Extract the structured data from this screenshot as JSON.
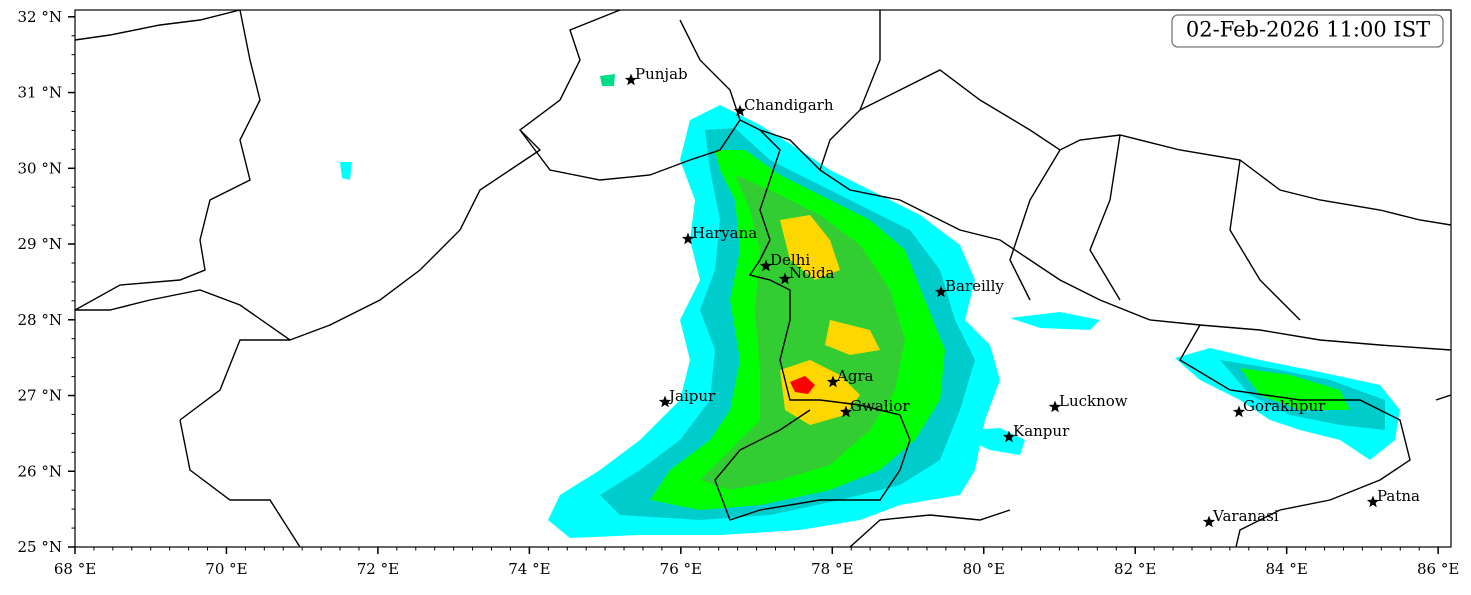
{
  "timestamp": "02-Feb-2026 11:00 IST",
  "axes": {
    "xlim": [
      68,
      86.17
    ],
    "ylim": [
      25,
      32.09
    ],
    "xticks": [
      {
        "value": 68,
        "label": "68 °E"
      },
      {
        "value": 70,
        "label": "70 °E"
      },
      {
        "value": 72,
        "label": "72 °E"
      },
      {
        "value": 74,
        "label": "74 °E"
      },
      {
        "value": 76,
        "label": "76 °E"
      },
      {
        "value": 78,
        "label": "78 °E"
      },
      {
        "value": 80,
        "label": "80 °E"
      },
      {
        "value": 82,
        "label": "82 °E"
      },
      {
        "value": 84,
        "label": "84 °E"
      },
      {
        "value": 86,
        "label": "86 °E"
      }
    ],
    "yticks": [
      {
        "value": 25,
        "label": "25 °N"
      },
      {
        "value": 26,
        "label": "26 °N"
      },
      {
        "value": 27,
        "label": "27 °N"
      },
      {
        "value": 28,
        "label": "28 °N"
      },
      {
        "value": 29,
        "label": "29 °N"
      },
      {
        "value": 30,
        "label": "30 °N"
      },
      {
        "value": 31,
        "label": "31 °N"
      },
      {
        "value": 32,
        "label": "32 °N"
      }
    ]
  },
  "cities": [
    "Punjab",
    "Chandigarh",
    "Haryana",
    "Delhi",
    "Noida",
    "Bareilly",
    "Agra",
    "Jaipur",
    "Gwalior",
    "Lucknow",
    "Kanpur",
    "Gorakhpur",
    "Varanasi",
    "Patna"
  ]
}
